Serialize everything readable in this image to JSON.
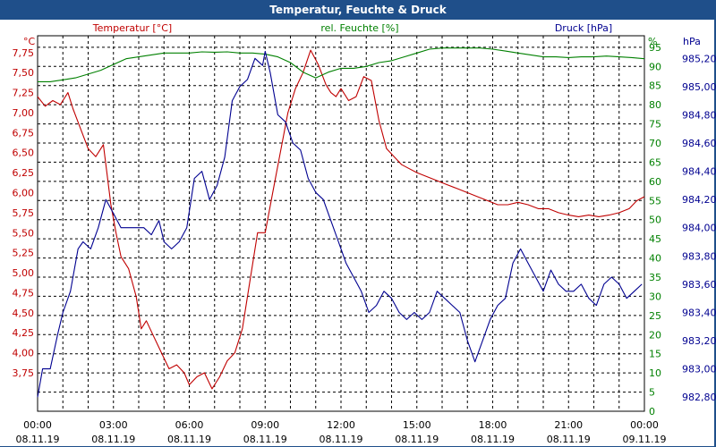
{
  "chart_data": {
    "type": "line",
    "title": "Temperatur, Feuchte & Druck",
    "x_ticks": [
      {
        "time": "00:00",
        "date": "08.11.19"
      },
      {
        "time": "03:00",
        "date": "08.11.19"
      },
      {
        "time": "06:00",
        "date": "08.11.19"
      },
      {
        "time": "09:00",
        "date": "08.11.19"
      },
      {
        "time": "12:00",
        "date": "08.11.19"
      },
      {
        "time": "15:00",
        "date": "08.11.19"
      },
      {
        "time": "18:00",
        "date": "08.11.19"
      },
      {
        "time": "21:00",
        "date": "08.11.19"
      },
      {
        "time": "00:00",
        "date": "09.11.19"
      }
    ],
    "x_range_hours": [
      0,
      24
    ],
    "grid": true,
    "axes": {
      "temperature": {
        "series_label": "Temperatur [°C]",
        "unit": "°C",
        "range": [
          3.27,
          7.96
        ],
        "ticks": [
          "3,75",
          "4,00",
          "4,25",
          "4,50",
          "4,75",
          "5,00",
          "5,25",
          "5,50",
          "5,75",
          "6,00",
          "6,25",
          "6,50",
          "6,75",
          "7,00",
          "7,25",
          "7,50",
          "7,75"
        ],
        "color": "#c00000"
      },
      "humidity": {
        "series_label": "rel. Feuchte [%]",
        "unit": "%",
        "range": [
          0,
          98
        ],
        "ticks": [
          "0",
          "5",
          "10",
          "15",
          "20",
          "25",
          "30",
          "35",
          "40",
          "45",
          "50",
          "55",
          "60",
          "65",
          "70",
          "75",
          "80",
          "85",
          "90",
          "95"
        ],
        "color": "#008000"
      },
      "pressure": {
        "series_label": "Druck [hPa]",
        "unit": "hPa",
        "range": [
          982.7,
          985.36
        ],
        "ticks": [
          "982,80",
          "983,00",
          "983,20",
          "983,40",
          "983,60",
          "983,80",
          "984,00",
          "984,20",
          "984,40",
          "984,60",
          "984,80",
          "985,00",
          "985,20"
        ],
        "color": "#000090"
      }
    },
    "series": [
      {
        "name": "Temperatur [°C]",
        "axis": "temperature",
        "color": "#c00000",
        "x": [
          0,
          0.3,
          0.6,
          0.9,
          1.2,
          1.4,
          1.7,
          2.0,
          2.3,
          2.6,
          2.9,
          3.1,
          3.3,
          3.6,
          3.9,
          4.1,
          4.3,
          4.6,
          4.9,
          5.2,
          5.5,
          5.8,
          6.0,
          6.3,
          6.6,
          6.9,
          7.2,
          7.5,
          7.8,
          8.1,
          8.4,
          8.7,
          9.0,
          9.3,
          9.6,
          9.9,
          10.2,
          10.5,
          10.8,
          11.1,
          11.4,
          11.6,
          11.8,
          12.0,
          12.3,
          12.6,
          12.9,
          13.2,
          13.5,
          13.8,
          14.1,
          14.4,
          14.7,
          15.0,
          15.4,
          15.8,
          16.2,
          16.6,
          17.0,
          17.4,
          17.8,
          18.2,
          18.6,
          19.0,
          19.4,
          19.8,
          20.2,
          20.6,
          21.0,
          21.4,
          21.8,
          22.2,
          22.6,
          23.0,
          23.4,
          23.7,
          24.0
        ],
        "values": [
          7.2,
          7.08,
          7.15,
          7.1,
          7.25,
          7.05,
          6.8,
          6.55,
          6.45,
          6.6,
          5.85,
          5.5,
          5.2,
          5.05,
          4.7,
          4.3,
          4.4,
          4.2,
          4.0,
          3.8,
          3.85,
          3.75,
          3.6,
          3.7,
          3.75,
          3.55,
          3.7,
          3.9,
          4.0,
          4.3,
          4.9,
          5.5,
          5.5,
          6.0,
          6.5,
          7.0,
          7.3,
          7.5,
          7.78,
          7.6,
          7.35,
          7.25,
          7.2,
          7.3,
          7.15,
          7.2,
          7.45,
          7.4,
          6.9,
          6.55,
          6.45,
          6.35,
          6.3,
          6.25,
          6.2,
          6.15,
          6.1,
          6.05,
          6.0,
          5.95,
          5.9,
          5.85,
          5.85,
          5.88,
          5.85,
          5.8,
          5.8,
          5.75,
          5.72,
          5.7,
          5.72,
          5.7,
          5.72,
          5.75,
          5.8,
          5.9,
          5.95
        ]
      },
      {
        "name": "rel. Feuchte [%]",
        "axis": "humidity",
        "color": "#008000",
        "x": [
          0,
          0.5,
          1.0,
          1.5,
          2.0,
          2.5,
          3.0,
          3.5,
          4.0,
          4.5,
          5.0,
          5.5,
          6.0,
          6.5,
          7.0,
          7.5,
          8.0,
          8.5,
          9.0,
          9.5,
          10.0,
          10.5,
          11.0,
          11.5,
          12.0,
          12.5,
          13.0,
          13.5,
          14.0,
          14.5,
          15.0,
          15.5,
          16.0,
          16.5,
          17.0,
          17.5,
          18.0,
          18.5,
          19.0,
          19.5,
          20.0,
          20.5,
          21.0,
          21.5,
          22.0,
          22.5,
          23.0,
          23.5,
          24.0
        ],
        "values": [
          86,
          86,
          86.5,
          87,
          88,
          89,
          90.5,
          92,
          92.5,
          93,
          93.5,
          93.5,
          93.5,
          93.8,
          93.7,
          93.8,
          93.5,
          93.5,
          93.2,
          92.5,
          91,
          88.5,
          87,
          88.5,
          89.5,
          89.5,
          90,
          91,
          91.5,
          92.5,
          93.5,
          94.5,
          94.8,
          94.8,
          94.8,
          94.8,
          94.5,
          94,
          93.5,
          93,
          92.5,
          92.5,
          92.3,
          92.5,
          92.5,
          92.7,
          92.5,
          92.3,
          92
        ]
      },
      {
        "name": "Druck [hPa]",
        "axis": "pressure",
        "color": "#000090",
        "x": [
          0,
          0.2,
          0.5,
          0.8,
          1.0,
          1.3,
          1.6,
          1.8,
          2.1,
          2.4,
          2.7,
          3.0,
          3.3,
          3.6,
          3.9,
          4.2,
          4.5,
          4.8,
          5.0,
          5.3,
          5.6,
          5.9,
          6.2,
          6.5,
          6.8,
          7.1,
          7.4,
          7.7,
          8.0,
          8.3,
          8.6,
          8.9,
          9.0,
          9.2,
          9.5,
          9.8,
          10.1,
          10.4,
          10.7,
          11.0,
          11.3,
          11.6,
          11.9,
          12.2,
          12.5,
          12.8,
          13.1,
          13.4,
          13.7,
          14.0,
          14.3,
          14.6,
          14.9,
          15.2,
          15.5,
          15.8,
          16.1,
          16.4,
          16.7,
          17.0,
          17.3,
          17.6,
          17.9,
          18.2,
          18.5,
          18.8,
          19.1,
          19.4,
          19.7,
          20.0,
          20.3,
          20.6,
          20.9,
          21.2,
          21.5,
          21.8,
          22.1,
          22.4,
          22.7,
          23.0,
          23.3,
          23.6,
          23.9
        ],
        "values": [
          982.8,
          983.0,
          983.0,
          983.25,
          983.4,
          983.55,
          983.85,
          983.9,
          983.85,
          984.0,
          984.2,
          984.1,
          984.0,
          984.0,
          984.0,
          984.0,
          983.95,
          984.05,
          983.9,
          983.85,
          983.9,
          984.0,
          984.35,
          984.4,
          984.2,
          984.3,
          984.5,
          984.9,
          985.0,
          985.05,
          985.2,
          985.15,
          985.25,
          985.1,
          984.8,
          984.75,
          984.6,
          984.55,
          984.35,
          984.25,
          984.2,
          984.05,
          983.9,
          983.75,
          983.65,
          983.55,
          983.4,
          983.45,
          983.55,
          983.5,
          983.4,
          983.35,
          983.4,
          983.35,
          983.4,
          983.55,
          983.5,
          983.45,
          983.4,
          983.2,
          983.05,
          983.2,
          983.35,
          983.45,
          983.5,
          983.75,
          983.85,
          983.75,
          983.65,
          983.55,
          983.7,
          983.6,
          983.55,
          983.55,
          983.6,
          983.5,
          983.45,
          983.6,
          983.65,
          983.6,
          983.5,
          983.55,
          983.6
        ]
      }
    ]
  }
}
